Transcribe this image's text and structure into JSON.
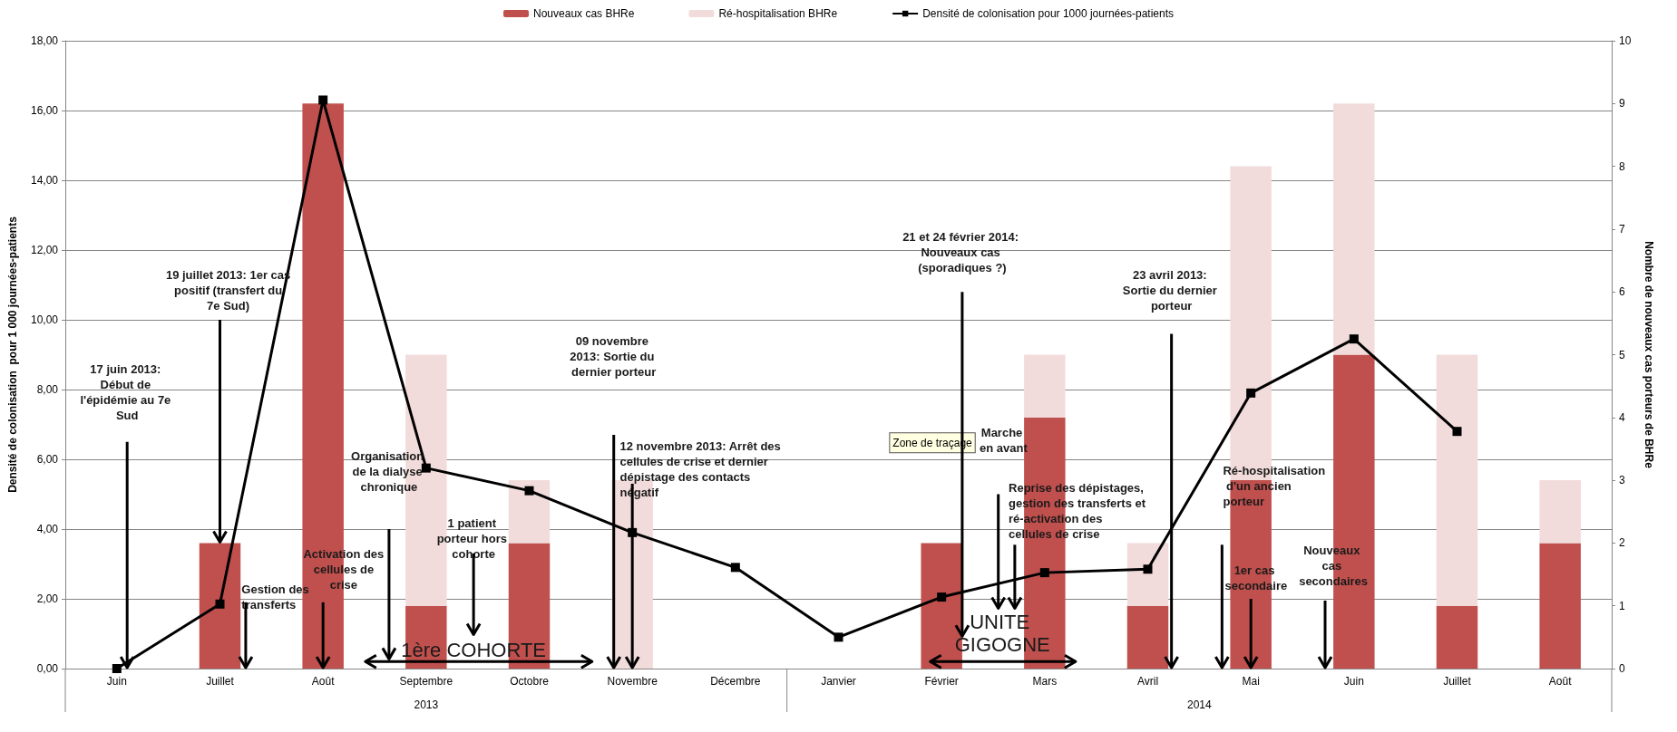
{
  "chart_data": {
    "type": "bar",
    "stacked": true,
    "ylabel": "Densité de colonisation  pour 1 000 journées-patients",
    "y2label": "Nombre de nouveaux cas porteurs de BHRe",
    "categories": [
      "Juin",
      "Juillet",
      "Août",
      "Septembre",
      "Octobre",
      "Novembre",
      "Décembre",
      "Janvier",
      "Février",
      "Mars",
      "Avril",
      "Mai",
      "Juin",
      "Juillet",
      "Août"
    ],
    "series": [
      {
        "name": "Nouveaux cas BHRe",
        "axis": "y2",
        "color": "#c0504d",
        "values": [
          0,
          2,
          9,
          1,
          2,
          0,
          0,
          0,
          2,
          4,
          1,
          3,
          5,
          1,
          2
        ]
      },
      {
        "name": "Ré-hospitalisation BHRe",
        "axis": "y2",
        "color": "#f2dcdb",
        "values": [
          0,
          0,
          0,
          4,
          1,
          3,
          0,
          0,
          0,
          1,
          1,
          5,
          4,
          4,
          1
        ]
      },
      {
        "name": "Densité de colonisation pour 1000 journées-patients",
        "type": "line",
        "color": "#000000",
        "marker": "square",
        "values": [
          0,
          1.85,
          16.3,
          5.75,
          5.1,
          3.9,
          2.9,
          0.9,
          2.05,
          2.75,
          2.85,
          7.9,
          9.45,
          6.8,
          null
        ]
      }
    ],
    "ylim": [
      0,
      18
    ],
    "yticks": [
      {
        "value": 0,
        "label": "0,00"
      },
      {
        "value": 2,
        "label": "2,00"
      },
      {
        "value": 4,
        "label": "4,00"
      },
      {
        "value": 6,
        "label": "6,00"
      },
      {
        "value": 8,
        "label": "8,00"
      },
      {
        "value": 10,
        "label": "10,00"
      },
      {
        "value": 12,
        "label": "12,00"
      },
      {
        "value": 14,
        "label": "14,00"
      },
      {
        "value": 16,
        "label": "16,00"
      },
      {
        "value": 18,
        "label": "18,00"
      }
    ],
    "y2lim": [
      0,
      10
    ],
    "y2ticks": [
      0,
      1,
      2,
      3,
      4,
      5,
      6,
      7,
      8,
      9,
      10
    ],
    "grid": "y",
    "legend": "top",
    "annotations": [
      "17 juin 2013: Début de l'épidémie au 7e Sud",
      {
        "text": "19 juillet 2013: 1er cas positif (transfert du 7e Sud)",
        "x": "Juillet",
        "y": 3.6
      },
      "Gestion des transferts",
      {
        "text": "Activation des cellules de crise",
        "x": "Août",
        "y": 0
      },
      "Organisation de la dialyse chronique",
      "1 patient porteur hors cohorte",
      "1ère COHORTE",
      "09 novembre 2013: Sortie du dernier porteur",
      {
        "text": "12 novembre 2013: Arrêt des cellules de crise et dernier dépistage des contacts négatif",
        "x": "Novembre",
        "y": 0
      },
      "21 et 24 février 2014: Nouveaux cas (sporadiques ?)",
      "Zone de traçage",
      "Marche en avant",
      "Reprise des dépistages, gestion des transferts et ré-activation des cellules de crise",
      "UNITE GIGOGNE",
      "23 avril 2013: Sortie du dernier porteur",
      "Ré-hospitalisation d'un ancien porteur",
      {
        "text": "1er cas secondaire",
        "x": "Mai",
        "y": 0
      },
      "Nouveaux cas secondaires",
      "2013",
      "2014"
    ]
  }
}
